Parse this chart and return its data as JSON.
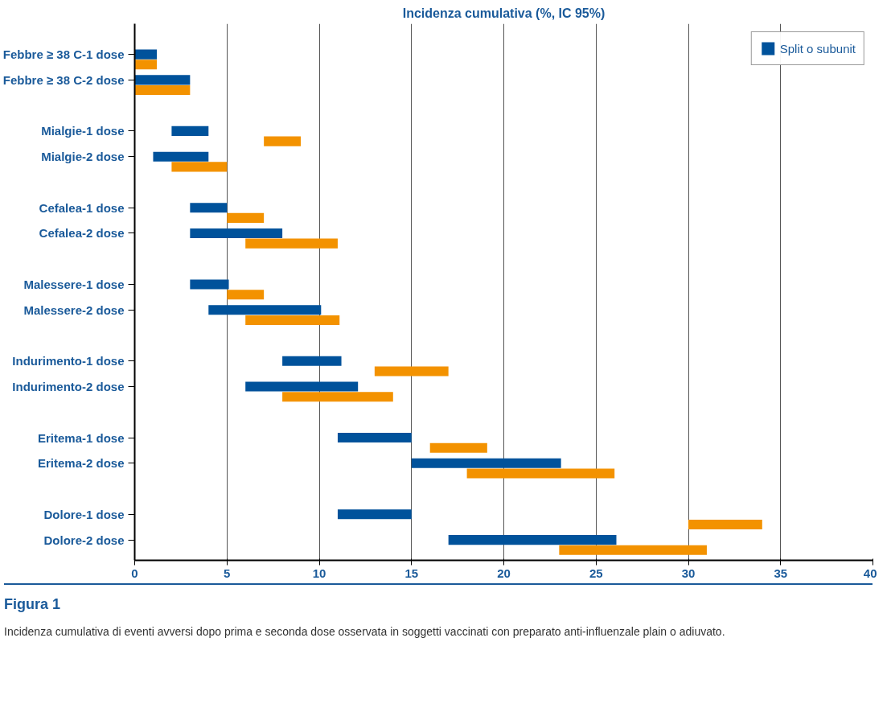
{
  "chart_data": {
    "type": "bar",
    "orientation": "horizontal",
    "title": "Incidenza cumulativa (%, IC 95%)",
    "categories": [
      "Febbre ≥ 38 C-1 dose",
      "Febbre ≥ 38 C-2 dose",
      "Mialgie-1 dose",
      "Mialgie-2 dose",
      "Cefalea-1 dose",
      "Cefalea-2 dose",
      "Malessere-1 dose",
      "Malessere-2 dose",
      "Indurimento-1 dose",
      "Indurimento-2 dose",
      "Eritema-1 dose",
      "Eritema-2 dose",
      "Dolore-1 dose",
      "Dolore-2 dose"
    ],
    "series": [
      {
        "name": "Split o subunit",
        "color": "#00529b",
        "base": [
          0,
          0,
          2,
          1,
          3,
          3,
          3,
          4,
          8,
          6,
          11,
          15,
          11,
          17
        ],
        "values": [
          1.2,
          3,
          2,
          3,
          2,
          5,
          2.1,
          6.1,
          3.2,
          6.1,
          4,
          8.1,
          4,
          9.1
        ]
      },
      {
        "color": "#f39200",
        "base": [
          0,
          0,
          7,
          2,
          5,
          6,
          5,
          6,
          13,
          8,
          16,
          18,
          30,
          23
        ],
        "values": [
          1.2,
          3,
          2,
          3,
          2,
          5,
          2,
          5.1,
          4,
          6,
          3.1,
          8,
          4,
          8
        ]
      }
    ],
    "xlim": [
      0,
      40
    ],
    "xticks": [
      0,
      5,
      10,
      15,
      20,
      25,
      30,
      35,
      40
    ],
    "grid": "x",
    "legend": "top right",
    "annotations": [
      "Figura 1",
      "Incidenza cumulativa di eventi avversi dopo prima e seconda dose osservata in soggetti vaccinati con preparato anti-influenzale plain o adiuvato."
    ]
  }
}
